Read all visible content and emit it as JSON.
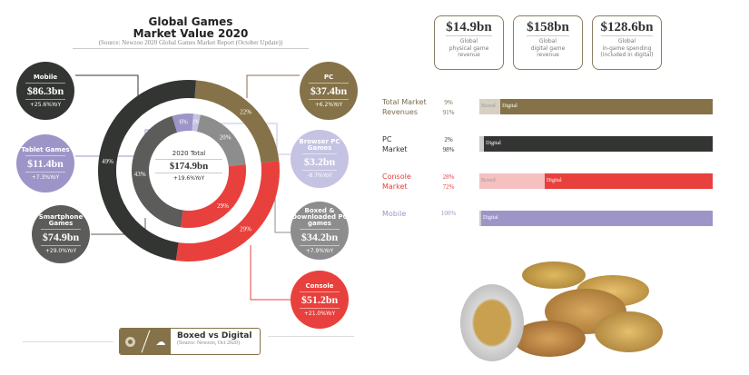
{
  "header": {
    "title": "Global Games\nMarket Value 2020",
    "source": "(Source: Newzoo 2020 Global Games Market Report (October Update))"
  },
  "center": {
    "label": "2020 Total",
    "value": "$174.9bn",
    "yoy": "+19.6%YoY"
  },
  "chart_data": [
    {
      "type": "pie",
      "title": "Global Games Market Value 2020",
      "ring": "outer",
      "categories": [
        "PC",
        "Console",
        "Mobile"
      ],
      "values": [
        22,
        29,
        49
      ],
      "labels": [
        "22%",
        "29%",
        "49%"
      ],
      "colors": [
        "#857248",
        "#e8403c",
        "#333533"
      ]
    },
    {
      "type": "pie",
      "ring": "inner",
      "categories": [
        "Browser PC Games",
        "Boxed & Downloaded PC games",
        "Console",
        "Smartphone Games",
        "Tablet Games"
      ],
      "values": [
        2,
        20,
        29,
        43,
        6
      ],
      "labels": [
        "2%",
        "20%",
        "29%",
        "43%",
        "6%"
      ],
      "colors": [
        "#c5c3e3",
        "#8d8d8d",
        "#e8403c",
        "#5c5c5a",
        "#9d95c8"
      ]
    },
    {
      "type": "bar",
      "title": "Boxed vs Digital",
      "categories": [
        "Total Market Revenues",
        "PC Market",
        "Console Market",
        "Mobile"
      ],
      "series": [
        {
          "name": "Boxed",
          "values": [
            9,
            2,
            28,
            0
          ]
        },
        {
          "name": "Digital",
          "values": [
            91,
            98,
            72,
            100
          ]
        }
      ],
      "xlim": [
        0,
        100
      ]
    }
  ],
  "bubbles": [
    {
      "name": "Mobile",
      "value": "$86.3bn",
      "yoy": "+25.6%YoY",
      "color": "#333533"
    },
    {
      "name": "Tablet Games",
      "value": "$11.4bn",
      "yoy": "+7.3%YoY",
      "color": "#9d95c8"
    },
    {
      "name": "Smartphone Games",
      "value": "$74.9bn",
      "yoy": "+29.0%YoY",
      "color": "#5c5c5a"
    },
    {
      "name": "PC",
      "value": "$37.4bn",
      "yoy": "+6.2%YoY",
      "color": "#857248"
    },
    {
      "name": "Browser PC Games",
      "value": "$3.2bn",
      "yoy": "-8.7%YoY",
      "color": "#c5c3e3"
    },
    {
      "name": "Boxed & Downloaded PC games",
      "value": "$34.2bn",
      "yoy": "+7.9%YoY",
      "color": "#8d8d8d"
    },
    {
      "name": "Console",
      "value": "$51.2bn",
      "yoy": "+21.0%YoY",
      "color": "#e8403c"
    }
  ],
  "footer": {
    "title": "Boxed vs Digital",
    "source": "(Source: Newzoo, Oct 2020)",
    "icons": [
      "disc-icon",
      "cloud-download-icon"
    ]
  },
  "cards": [
    {
      "value": "$14.9bn",
      "desc": "Global\nphysical game\nrevenue"
    },
    {
      "value": "$158bn",
      "desc": "Global\ndigital game\nrevenue"
    },
    {
      "value": "$128.6bn",
      "desc": "Global\nin-game spending\n(included in digital)"
    }
  ],
  "rows": [
    {
      "label": "Total Market\nRevenues",
      "boxed_pct": "9%",
      "digital_pct": "91%",
      "boxed_label": "Boxed",
      "digital_label": "Digital",
      "color": "#857248",
      "boxed_color": "#d6d0c2",
      "text_color": "#7a6c4d"
    },
    {
      "label": "PC\nMarket",
      "boxed_pct": "2%",
      "digital_pct": "98%",
      "boxed_label": "",
      "digital_label": "Digital",
      "color": "#333533",
      "boxed_color": "#ccc",
      "text_color": "#333"
    },
    {
      "label": "Console\nMarket",
      "boxed_pct": "28%",
      "digital_pct": "72%",
      "boxed_label": "Boxed",
      "digital_label": "Digital",
      "color": "#e8403c",
      "boxed_color": "#f5c0c0",
      "text_color": "#e8403c"
    },
    {
      "label": "Mobile",
      "boxed_pct": "",
      "digital_pct": "100%",
      "boxed_label": "",
      "digital_label": "Digital",
      "color": "#9d95c8",
      "boxed_color": "#ccc",
      "text_color": "#9d95c8"
    }
  ]
}
